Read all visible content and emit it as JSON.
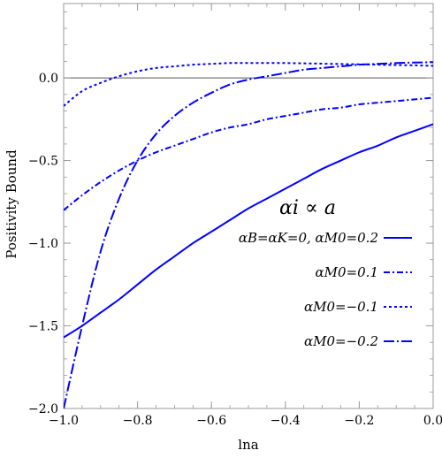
{
  "chart_data": {
    "type": "line",
    "xlabel": "lna",
    "ylabel": "Positivity Bound",
    "xlim": [
      -1.0,
      0.0
    ],
    "ylim": [
      -2.0,
      0.45
    ],
    "xticks": [
      "−1.0",
      "−0.8",
      "−0.6",
      "−0.4",
      "−0.2",
      "0.0"
    ],
    "yticks": [
      "−2.0",
      "−1.5",
      "−1.0",
      "−0.5",
      "0.0"
    ],
    "legend_title": "αi ∝ a",
    "legend_placement": "right",
    "color": "#0000ff",
    "series": [
      {
        "name": "αB=αK=0,  αM0=0.2",
        "style": "solid",
        "x": [
          -1.0,
          -0.95,
          -0.9,
          -0.85,
          -0.8,
          -0.75,
          -0.7,
          -0.65,
          -0.6,
          -0.55,
          -0.5,
          -0.45,
          -0.4,
          -0.35,
          -0.3,
          -0.25,
          -0.2,
          -0.15,
          -0.1,
          -0.05,
          0.0
        ],
        "y": [
          -1.57,
          -1.5,
          -1.42,
          -1.34,
          -1.25,
          -1.16,
          -1.08,
          -1.0,
          -0.93,
          -0.86,
          -0.79,
          -0.73,
          -0.67,
          -0.61,
          -0.55,
          -0.5,
          -0.45,
          -0.41,
          -0.36,
          -0.32,
          -0.28
        ]
      },
      {
        "name": "αM0=0.1",
        "style": "dashdot",
        "x": [
          -1.0,
          -0.95,
          -0.9,
          -0.85,
          -0.8,
          -0.75,
          -0.7,
          -0.65,
          -0.6,
          -0.55,
          -0.5,
          -0.45,
          -0.4,
          -0.35,
          -0.3,
          -0.25,
          -0.2,
          -0.15,
          -0.1,
          -0.05,
          0.0
        ],
        "y": [
          -0.8,
          -0.71,
          -0.63,
          -0.56,
          -0.5,
          -0.45,
          -0.41,
          -0.37,
          -0.33,
          -0.3,
          -0.28,
          -0.25,
          -0.23,
          -0.21,
          -0.19,
          -0.18,
          -0.16,
          -0.15,
          -0.14,
          -0.13,
          -0.12
        ]
      },
      {
        "name": "αM0=−0.1",
        "style": "dotted",
        "x": [
          -1.0,
          -0.95,
          -0.9,
          -0.85,
          -0.8,
          -0.75,
          -0.7,
          -0.65,
          -0.6,
          -0.55,
          -0.5,
          -0.45,
          -0.4,
          -0.35,
          -0.3,
          -0.25,
          -0.2,
          -0.15,
          -0.1,
          -0.05,
          0.0
        ],
        "y": [
          -0.17,
          -0.08,
          -0.03,
          0.01,
          0.04,
          0.06,
          0.07,
          0.08,
          0.085,
          0.09,
          0.09,
          0.09,
          0.09,
          0.088,
          0.086,
          0.084,
          0.082,
          0.08,
          0.078,
          0.076,
          0.073
        ]
      },
      {
        "name": "αM0=−0.2",
        "style": "longdashdot",
        "x": [
          -1.0,
          -0.95,
          -0.9,
          -0.85,
          -0.8,
          -0.75,
          -0.7,
          -0.65,
          -0.6,
          -0.55,
          -0.5,
          -0.45,
          -0.4,
          -0.35,
          -0.3,
          -0.25,
          -0.2,
          -0.15,
          -0.1,
          -0.05,
          0.0
        ],
        "y": [
          -2.0,
          -1.5,
          -1.05,
          -0.73,
          -0.5,
          -0.34,
          -0.23,
          -0.15,
          -0.09,
          -0.04,
          -0.01,
          0.01,
          0.03,
          0.05,
          0.06,
          0.07,
          0.08,
          0.085,
          0.09,
          0.093,
          0.095
        ]
      }
    ]
  }
}
